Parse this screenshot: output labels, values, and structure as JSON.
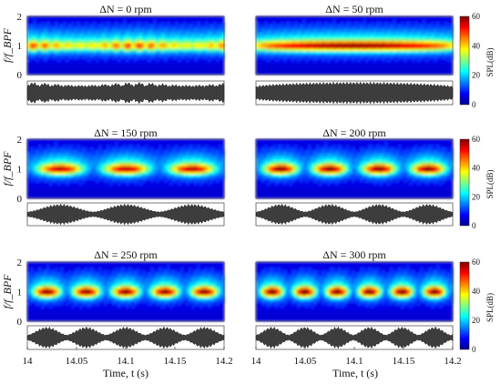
{
  "chart_data": {
    "type": "heatmap",
    "xlabel": "Time, t (s)",
    "ylabel": "f/f_BPF",
    "xlim": [
      14,
      14.2
    ],
    "ylim": [
      0,
      2
    ],
    "x_ticks": [
      "14",
      "14.05",
      "14.1",
      "14.15",
      "14.2"
    ],
    "y_ticks": [
      "0",
      "1",
      "2"
    ],
    "colorbar": {
      "label": "SPL(dB)",
      "range": [
        0,
        60
      ],
      "ticks": [
        "0",
        "20",
        "40",
        "60"
      ],
      "colors": [
        "#00008f",
        "#0000ff",
        "#0080ff",
        "#00ffff",
        "#80ff80",
        "#ffff00",
        "#ff8000",
        "#ff0000",
        "#800000"
      ]
    },
    "panels": [
      {
        "title": "ΔN = 0 rpm",
        "delta_n_rpm": 0,
        "peak_spl_db": 36,
        "modulation_period_s": 0.012
      },
      {
        "title": "ΔN = 50 rpm",
        "delta_n_rpm": 50,
        "peak_spl_db": 45,
        "modulation_period_s": 0.2
      },
      {
        "title": "ΔN = 150 rpm",
        "delta_n_rpm": 150,
        "peak_spl_db": 43,
        "modulation_period_s": 0.067
      },
      {
        "title": "ΔN = 200 rpm",
        "delta_n_rpm": 200,
        "peak_spl_db": 46,
        "modulation_period_s": 0.05
      },
      {
        "title": "ΔN = 250 rpm",
        "delta_n_rpm": 250,
        "peak_spl_db": 46,
        "modulation_period_s": 0.04
      },
      {
        "title": "ΔN = 300 rpm",
        "delta_n_rpm": 300,
        "peak_spl_db": 47,
        "modulation_period_s": 0.033
      }
    ]
  }
}
